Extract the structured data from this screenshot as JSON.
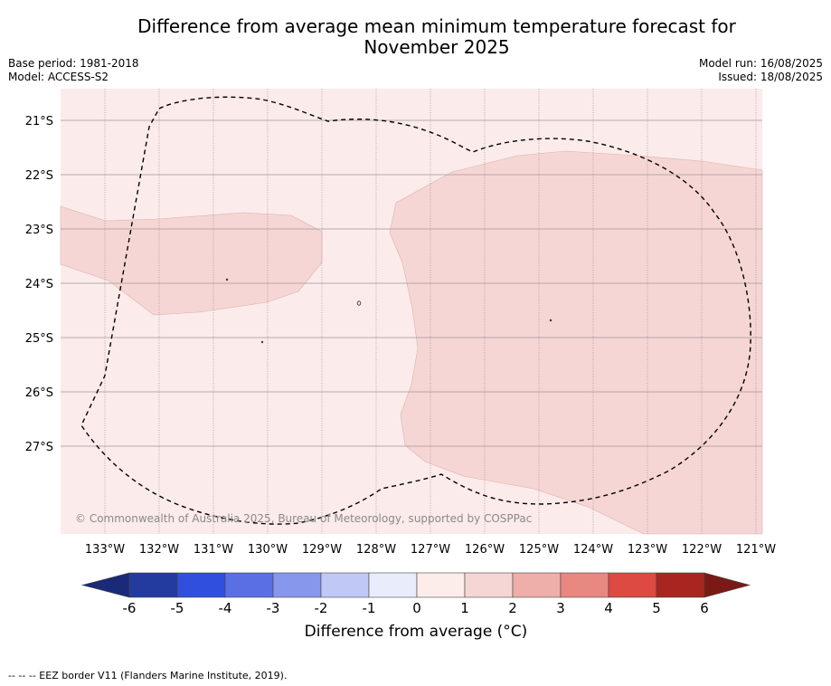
{
  "header": {
    "title_line1": "Difference from average mean minimum temperature forecast for",
    "title_line2": "November 2025",
    "base_period": "Base period: 1981-2018",
    "model": "Model: ACCESS-S2",
    "model_run": "Model run: 16/08/2025",
    "issued": "Issued: 18/08/2025"
  },
  "map": {
    "lat_labels": [
      "21°S",
      "22°S",
      "23°S",
      "24°S",
      "25°S",
      "26°S",
      "27°S"
    ],
    "lon_labels": [
      "133°W",
      "132°W",
      "131°W",
      "130°W",
      "129°W",
      "128°W",
      "127°W",
      "126°W",
      "125°W",
      "124°W",
      "123°W",
      "122°W",
      "121°W"
    ],
    "copyright": "© Commonwealth of Australia 2025, Bureau of Meteorology, supported by COSPPac",
    "background_color": "#fbebea",
    "anomaly_1_2_color": "#f5d6d4"
  },
  "colorbar": {
    "ticks": [
      "-6",
      "-5",
      "-4",
      "-3",
      "-2",
      "-1",
      "0",
      "1",
      "2",
      "3",
      "4",
      "5",
      "6"
    ],
    "colors": [
      "#233b9e",
      "#2f4fdc",
      "#5a6fe4",
      "#8797ec",
      "#c0c8f5",
      "#e9ecfb",
      "#fcecea",
      "#f5d6d4",
      "#eeaea9",
      "#e88880",
      "#dc4a41",
      "#a8261f"
    ],
    "under_color": "#1b2a78",
    "over_color": "#7a1a16",
    "label": "Difference from average (°C)"
  },
  "legend": {
    "eez": "--  --  -- EEZ border V11 (Flanders Marine Institute, 2019)."
  }
}
